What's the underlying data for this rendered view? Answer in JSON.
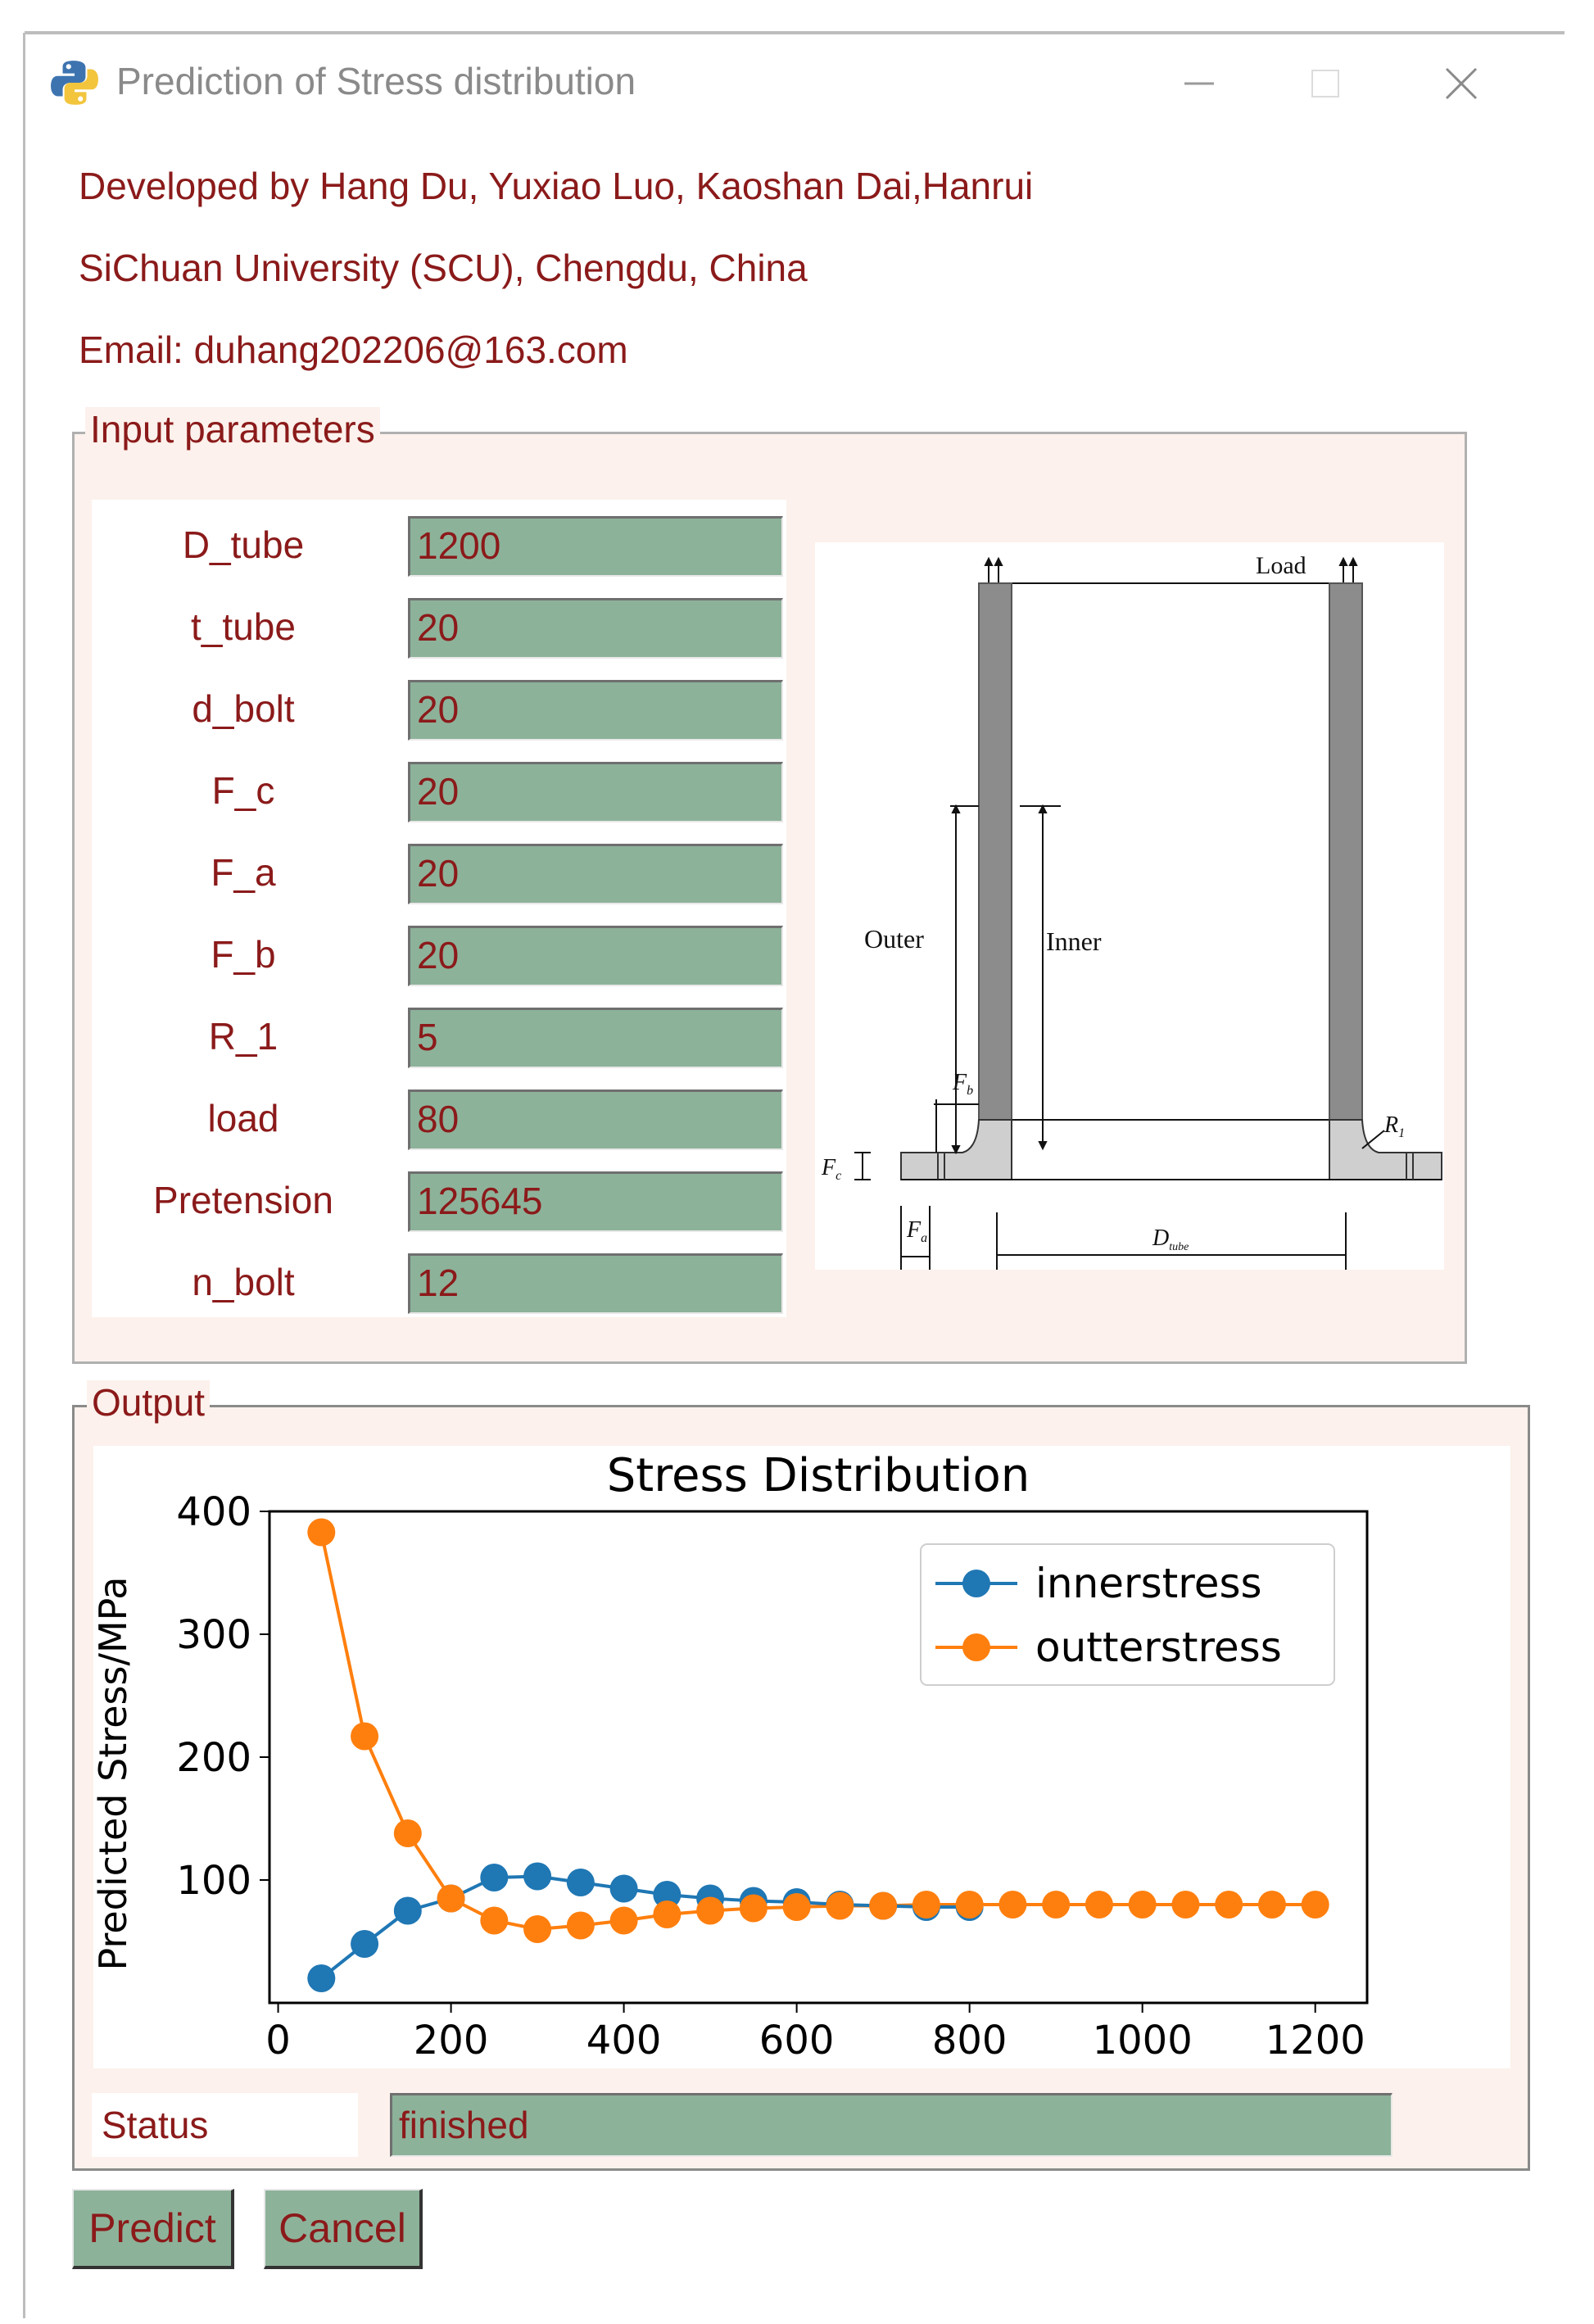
{
  "window": {
    "title": "Prediction of Stress distribution"
  },
  "info": {
    "developers": "Developed by Hang Du, Yuxiao Luo, Kaoshan Dai,Hanrui",
    "university": "SiChuan University (SCU), Chengdu, China",
    "email": "Email: duhang202206@163.com"
  },
  "input_group": {
    "title": "Input parameters",
    "params": [
      {
        "label": "D_tube",
        "value": "1200"
      },
      {
        "label": "t_tube",
        "value": "20"
      },
      {
        "label": "d_bolt",
        "value": "20"
      },
      {
        "label": "F_c",
        "value": "20"
      },
      {
        "label": "F_a",
        "value": "20"
      },
      {
        "label": "F_b",
        "value": "20"
      },
      {
        "label": "R_1",
        "value": "5"
      },
      {
        "label": "load",
        "value": "80"
      },
      {
        "label": "Pretension",
        "value": "125645"
      },
      {
        "label": "n_bolt",
        "value": "12"
      }
    ]
  },
  "diagram": {
    "load_label": "Load",
    "outer_label": "Outer",
    "inner_label": "Inner",
    "fb_label": "F",
    "fb_sub": "b",
    "fc_label": "F",
    "fc_sub": "c",
    "fa_label": "F",
    "fa_sub": "a",
    "r1_label": "R",
    "r1_sub": "1",
    "dtube_label": "D",
    "dtube_sub": "tube"
  },
  "output_group": {
    "title": "Output"
  },
  "chart_data": {
    "type": "line",
    "title": "Stress Distribution",
    "xlabel": "",
    "ylabel": "Predicted Stress/MPa",
    "xlim": [
      -10,
      1260
    ],
    "ylim": [
      0,
      400
    ],
    "xticks": [
      "0",
      "200",
      "400",
      "600",
      "800",
      "1000",
      "1200"
    ],
    "xtick_values": [
      0,
      200,
      400,
      600,
      800,
      1000,
      1200
    ],
    "yticks": [
      "100",
      "200",
      "300",
      "400"
    ],
    "ytick_values": [
      100,
      200,
      300,
      400
    ],
    "legend_position": "top-right",
    "series": [
      {
        "name": "innerstress",
        "color": "#1f77b4",
        "x": [
          50,
          100,
          150,
          200,
          250,
          300,
          350,
          400,
          450,
          500,
          550,
          600,
          650,
          700,
          750,
          800
        ],
        "y": [
          20,
          48,
          75,
          85,
          102,
          103,
          98,
          93,
          88,
          85,
          83,
          82,
          80,
          79,
          78,
          78
        ]
      },
      {
        "name": "outterstress",
        "color": "#ff7f0e",
        "x": [
          50,
          100,
          150,
          200,
          250,
          300,
          350,
          400,
          450,
          500,
          550,
          600,
          650,
          700,
          750,
          800,
          850,
          900,
          950,
          1000,
          1050,
          1100,
          1150,
          1200
        ],
        "y": [
          383,
          217,
          138,
          85,
          67,
          60,
          63,
          67,
          72,
          75,
          77,
          78,
          79,
          79,
          80,
          80,
          80,
          80,
          80,
          80,
          80,
          80,
          80,
          80
        ]
      }
    ]
  },
  "status": {
    "label": "Status",
    "value": "finished"
  },
  "buttons": {
    "predict": "Predict",
    "cancel": "Cancel"
  },
  "colors": {
    "field_bg": "#8db29a",
    "text": "#8b1a1a",
    "group_bg": "#fcf1ec"
  }
}
